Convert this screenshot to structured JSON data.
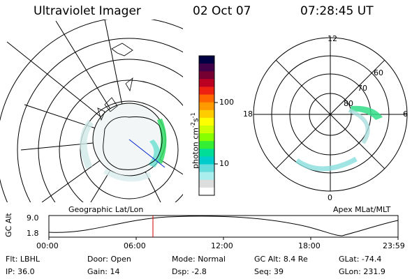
{
  "header": {
    "instrument": "Ultraviolet Imager",
    "date": "02 Oct 07",
    "time": "07:28:45 UT"
  },
  "left_map": {
    "caption": "Geographic Lat/Lon"
  },
  "right_map": {
    "caption": "Apex MLat/MLT",
    "mlt_labels": [
      "12",
      "18",
      "6",
      "0"
    ],
    "lat_labels": [
      "60",
      "70",
      "80"
    ]
  },
  "colorbar": {
    "unit_label": "photon cm",
    "unit_exp1": "-2",
    "unit_s": "s",
    "unit_exp2": "-1",
    "ticks": [
      "100",
      "10"
    ],
    "colors": [
      "#000044",
      "#40004a",
      "#770033",
      "#bb0022",
      "#ee2211",
      "#ff6600",
      "#ff9900",
      "#ffcc00",
      "#ffff00",
      "#ccff00",
      "#88ff00",
      "#33ee33",
      "#00dd99",
      "#00cccc",
      "#66dddd",
      "#aaeeee",
      "#dddddd",
      "#ffffff"
    ]
  },
  "timeline": {
    "axis_title": "GC Alt",
    "y_ticks": [
      "9.0",
      "1.8"
    ],
    "x_ticks": [
      "00:00",
      "06:00",
      "12:00",
      "18:00",
      "23:59"
    ],
    "current_time_color": "#cc0000"
  },
  "status": {
    "row1": [
      {
        "label": "Flt:",
        "value": "LBHL"
      },
      {
        "label": "Door:",
        "value": "Open"
      },
      {
        "label": "Mode:",
        "value": "Normal"
      },
      {
        "label": "GC Alt:",
        "value": "8.4 Re"
      },
      {
        "label": "GLat:",
        "value": "-74.4"
      }
    ],
    "row2": [
      {
        "label": "IP:",
        "value": "36.0"
      },
      {
        "label": "Gain:",
        "value": "14"
      },
      {
        "label": "Dsp:",
        "value": "-2.8"
      },
      {
        "label": "Seq:",
        "value": "39"
      },
      {
        "label": "GLon:",
        "value": "231.9"
      }
    ]
  }
}
